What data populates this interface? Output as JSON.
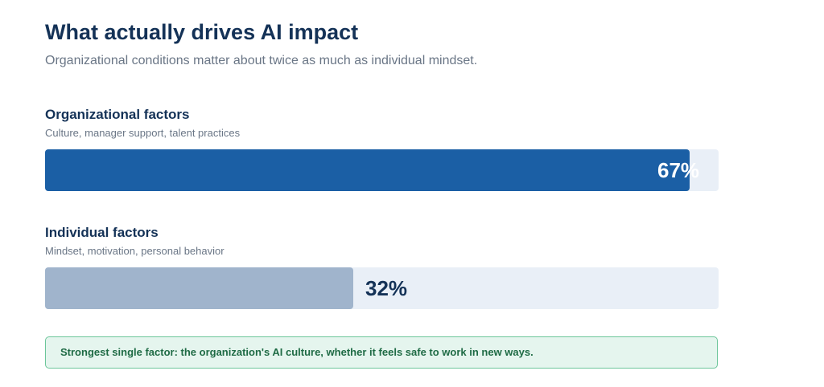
{
  "header": {
    "title": "What actually drives AI impact",
    "subtitle": "Organizational conditions matter about twice as much as individual mindset."
  },
  "chart_data": {
    "type": "bar",
    "orientation": "horizontal",
    "categories": [
      "Organizational factors",
      "Individual factors"
    ],
    "descriptions": [
      "Culture, manager support, talent practices",
      "Mindset, motivation, personal behavior"
    ],
    "values": [
      67,
      32
    ],
    "value_labels": [
      "67%",
      "32%"
    ],
    "xlim": [
      0,
      70
    ],
    "colors": [
      "#1b5fa5",
      "#a0b4cc"
    ],
    "track_color": "#e9eff7",
    "label_colors": [
      "#ffffff",
      "#143257"
    ],
    "grid": false
  },
  "callout": {
    "text": "Strongest single factor: the organization's AI culture, whether it feels safe to work in new ways."
  }
}
